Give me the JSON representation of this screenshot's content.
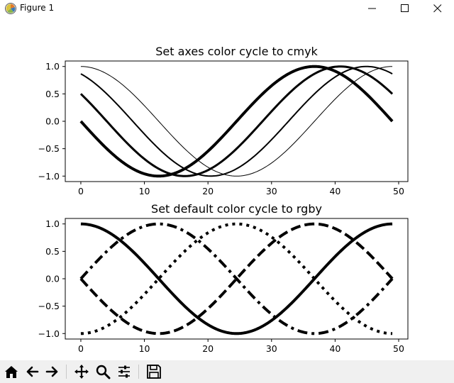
{
  "window": {
    "title": "Figure 1",
    "app_icon": "matplotlib-icon",
    "controls": [
      "minimize-icon",
      "maximize-icon",
      "close-icon"
    ]
  },
  "toolbar": {
    "buttons": [
      "home-icon",
      "back-icon",
      "forward-icon",
      "pan-icon",
      "zoom-icon",
      "subplots-icon",
      "save-icon"
    ]
  },
  "chart_data": [
    {
      "type": "line",
      "title": "Set axes color cycle to cmyk",
      "xlabel": "",
      "ylabel": "",
      "xlim": [
        -2.45,
        51.45
      ],
      "ylim": [
        -1.1,
        1.1
      ],
      "xticks": [
        0,
        10,
        20,
        30,
        40,
        50
      ],
      "xtick_labels": [
        "0",
        "10",
        "20",
        "30",
        "40",
        "50"
      ],
      "yticks": [
        1.0,
        0.5,
        0.0,
        -0.5,
        -1.0
      ],
      "ytick_labels": [
        "1.0",
        "0.5",
        "0.0",
        "−0.5",
        "−1.0"
      ],
      "grid": false,
      "legend": "none",
      "x_range": [
        0,
        49
      ],
      "series": [
        {
          "function": "cos(t)",
          "t_range": [
            0,
            6.2832
          ],
          "line_width": 1,
          "line_style": "solid",
          "color": "#000000"
        },
        {
          "function": "cos(t + 0.5236)",
          "t_range": [
            0,
            6.2832
          ],
          "line_width": 2,
          "line_style": "solid",
          "color": "#000000"
        },
        {
          "function": "cos(t + 1.0472)",
          "t_range": [
            0,
            6.2832
          ],
          "line_width": 3,
          "line_style": "solid",
          "color": "#000000"
        },
        {
          "function": "cos(t + 1.5708)",
          "t_range": [
            0,
            6.2832
          ],
          "line_width": 4,
          "line_style": "solid",
          "color": "#000000"
        }
      ]
    },
    {
      "type": "line",
      "title": "Set default color cycle to rgby",
      "xlabel": "",
      "ylabel": "",
      "xlim": [
        -2.45,
        51.45
      ],
      "ylim": [
        -1.1,
        1.1
      ],
      "xticks": [
        0,
        10,
        20,
        30,
        40,
        50
      ],
      "xtick_labels": [
        "0",
        "10",
        "20",
        "30",
        "40",
        "50"
      ],
      "yticks": [
        1.0,
        0.5,
        0.0,
        -0.5,
        -1.0
      ],
      "ytick_labels": [
        "1.0",
        "0.5",
        "0.0",
        "−0.5",
        "−1.0"
      ],
      "grid": false,
      "legend": "none",
      "x_range": [
        0,
        49
      ],
      "series": [
        {
          "function": "cos(t)",
          "t_range": [
            0,
            6.2832
          ],
          "line_width": 4,
          "line_style": "solid",
          "color": "#000000"
        },
        {
          "function": "cos(t + 1.5708)",
          "t_range": [
            0,
            6.2832
          ],
          "line_width": 4,
          "line_style": "dashed",
          "color": "#000000"
        },
        {
          "function": "cos(t + 3.1416)",
          "t_range": [
            0,
            6.2832
          ],
          "line_width": 4,
          "line_style": "dotted",
          "color": "#000000"
        },
        {
          "function": "cos(t + 4.7124)",
          "t_range": [
            0,
            6.2832
          ],
          "line_width": 4,
          "line_style": "dashdot",
          "color": "#000000"
        }
      ]
    }
  ]
}
